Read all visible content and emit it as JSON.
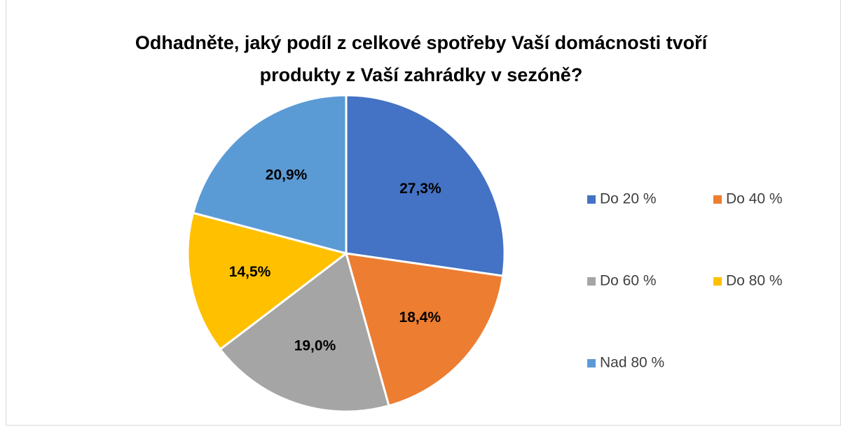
{
  "chart_data": {
    "type": "pie",
    "title": "Odhadněte, jaký podíl z celkové spotřeby Vaší domácnosti tvoří produkty z Vaší zahrádky v sezóně?",
    "categories": [
      "Do 20 %",
      "Do 40 %",
      "Do 60 %",
      "Do 80 %",
      "Nad 80 %"
    ],
    "values": [
      27.3,
      18.4,
      19.0,
      14.5,
      20.9
    ],
    "value_labels": [
      "27,3%",
      "18,4%",
      "19,0%",
      "14,5%",
      "20,9%"
    ],
    "colors": [
      "#4472c4",
      "#ed7d31",
      "#a5a5a5",
      "#ffc000",
      "#5b9bd5"
    ],
    "legend": "right"
  }
}
